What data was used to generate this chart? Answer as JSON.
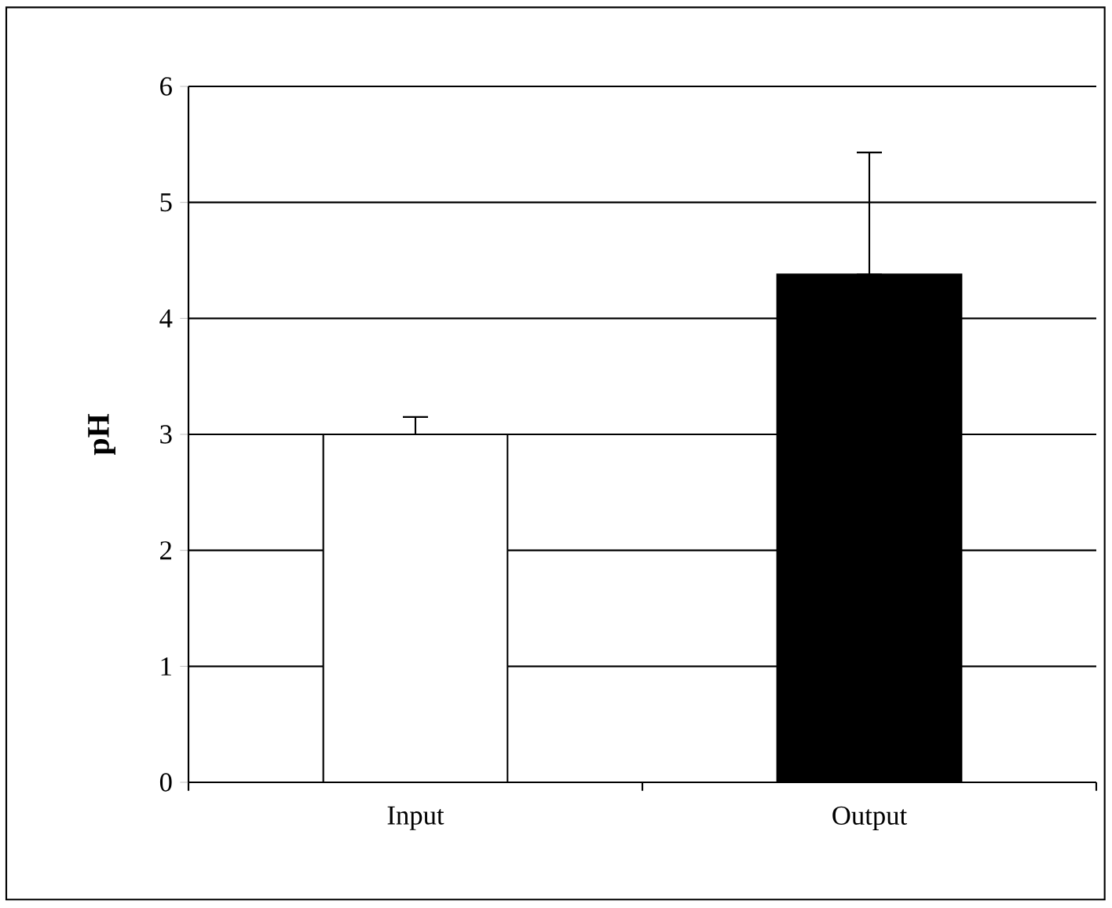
{
  "chart_data": {
    "type": "bar",
    "ylabel": "pH",
    "categories": [
      "Input",
      "Output"
    ],
    "values": [
      3.0,
      4.38
    ],
    "colors": [
      "#ffffff",
      "#000000"
    ],
    "errors": [
      [
        3.0,
        3.15
      ],
      [
        4.38,
        5.43
      ]
    ],
    "ylim": [
      0,
      6
    ],
    "yticks": [
      0,
      1,
      2,
      3,
      4,
      5,
      6
    ],
    "grid": "y"
  }
}
